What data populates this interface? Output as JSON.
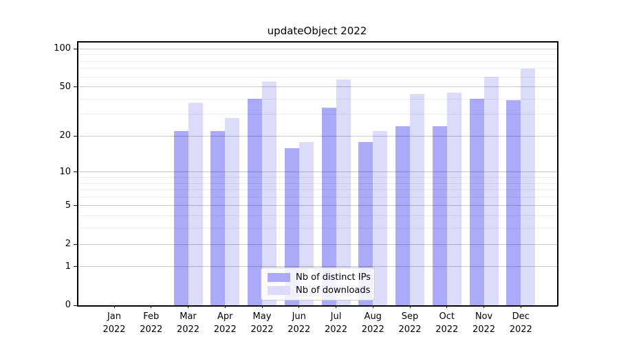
{
  "chart_data": {
    "type": "bar",
    "title": "updateObject 2022",
    "year_label": "2022",
    "categories": [
      "Jan",
      "Feb",
      "Mar",
      "Apr",
      "May",
      "Jun",
      "Jul",
      "Aug",
      "Sep",
      "Oct",
      "Nov",
      "Dec"
    ],
    "series": [
      {
        "name": "Nb of distinct IPs",
        "color": "#aaaaf8",
        "values": [
          0,
          0,
          22,
          22,
          40,
          16,
          34,
          18,
          24,
          24,
          40,
          39
        ]
      },
      {
        "name": "Nb of downloads",
        "color": "#dbdbfa",
        "values": [
          0,
          0,
          37,
          28,
          55,
          18,
          57,
          22,
          44,
          45,
          60,
          70
        ]
      }
    ],
    "y_axis": {
      "scale": "log1p",
      "ticks": [
        0,
        1,
        2,
        5,
        10,
        20,
        50,
        100
      ],
      "minor_gridlines": [
        3,
        4,
        6,
        7,
        8,
        9,
        30,
        40,
        60,
        70,
        80,
        90
      ],
      "ylim": [
        0,
        115
      ]
    },
    "legend": {
      "position": "lower center"
    },
    "grid": "on"
  }
}
